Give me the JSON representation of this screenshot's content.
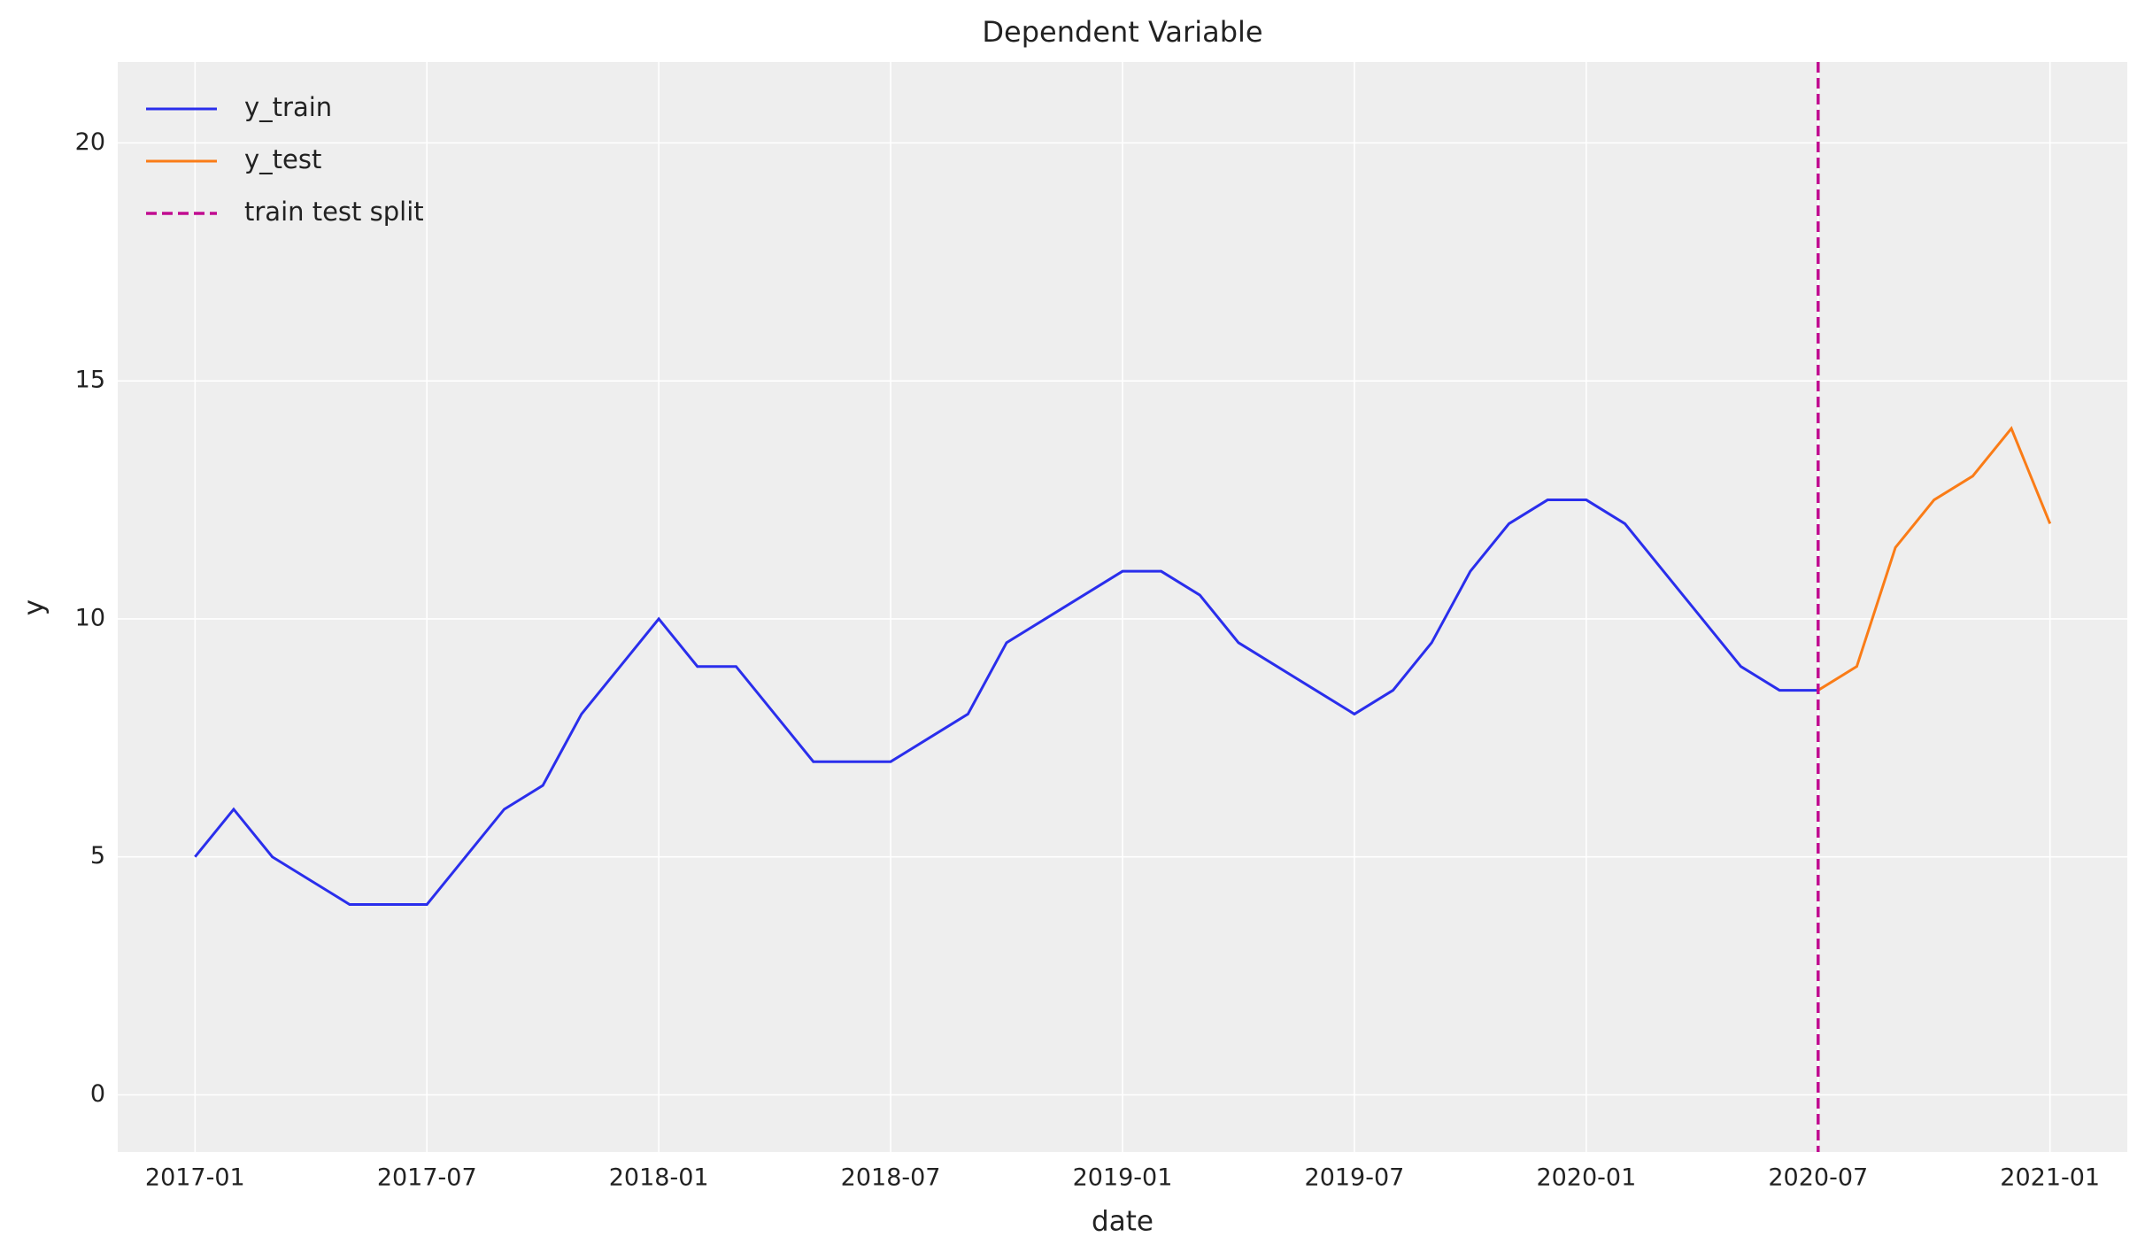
{
  "chart_data": {
    "type": "line",
    "title": "Dependent Variable",
    "x_label": "date",
    "y_label": "y",
    "x": [
      "2017-01",
      "2017-02",
      "2017-03",
      "2017-04",
      "2017-05",
      "2017-06",
      "2017-07",
      "2017-08",
      "2017-09",
      "2017-10",
      "2017-11",
      "2017-12",
      "2018-01",
      "2018-02",
      "2018-03",
      "2018-04",
      "2018-05",
      "2018-06",
      "2018-07",
      "2018-08",
      "2018-09",
      "2018-10",
      "2018-11",
      "2018-12",
      "2019-01",
      "2019-02",
      "2019-03",
      "2019-04",
      "2019-05",
      "2019-06",
      "2019-07",
      "2019-08",
      "2019-09",
      "2019-10",
      "2019-11",
      "2019-12",
      "2020-01",
      "2020-02",
      "2020-03",
      "2020-04",
      "2020-05",
      "2020-06",
      "2020-07",
      "2020-08",
      "2020-09",
      "2020-10",
      "2020-11",
      "2020-12",
      "2021-01"
    ],
    "series": [
      {
        "name": "y_train",
        "color": "#2a2eec",
        "values": [
          5,
          6,
          5,
          4.5,
          4,
          4,
          4,
          5,
          6,
          6.5,
          8,
          9,
          10,
          9,
          9,
          8,
          7,
          7,
          7,
          7.5,
          8,
          9.5,
          10,
          10.5,
          11,
          11,
          10.5,
          9.5,
          9,
          8.5,
          8,
          8.5,
          9.5,
          11,
          12,
          12.5,
          12.5,
          12,
          11,
          10,
          9,
          8.5,
          8.5,
          null,
          null,
          null,
          null,
          null,
          null
        ]
      },
      {
        "name": "y_test",
        "color": "#fa7c17",
        "values": [
          null,
          null,
          null,
          null,
          null,
          null,
          null,
          null,
          null,
          null,
          null,
          null,
          null,
          null,
          null,
          null,
          null,
          null,
          null,
          null,
          null,
          null,
          null,
          null,
          null,
          null,
          null,
          null,
          null,
          null,
          null,
          null,
          null,
          null,
          null,
          null,
          null,
          null,
          null,
          null,
          null,
          null,
          8.5,
          9,
          11.5,
          12.5,
          13,
          14,
          12
        ]
      }
    ],
    "split": {
      "x": "2020-07",
      "label": "train test split",
      "color": "#c10c90"
    },
    "xlim": [
      "2016-11",
      "2021-03"
    ],
    "xticks": [
      "2017-01",
      "2017-07",
      "2018-01",
      "2018-07",
      "2019-01",
      "2019-07",
      "2020-01",
      "2020-07",
      "2021-01"
    ],
    "ylim": [
      -1.2,
      21.7
    ],
    "yticks": [
      0,
      5,
      10,
      15,
      20
    ],
    "grid": true,
    "legend": "upper-left"
  }
}
